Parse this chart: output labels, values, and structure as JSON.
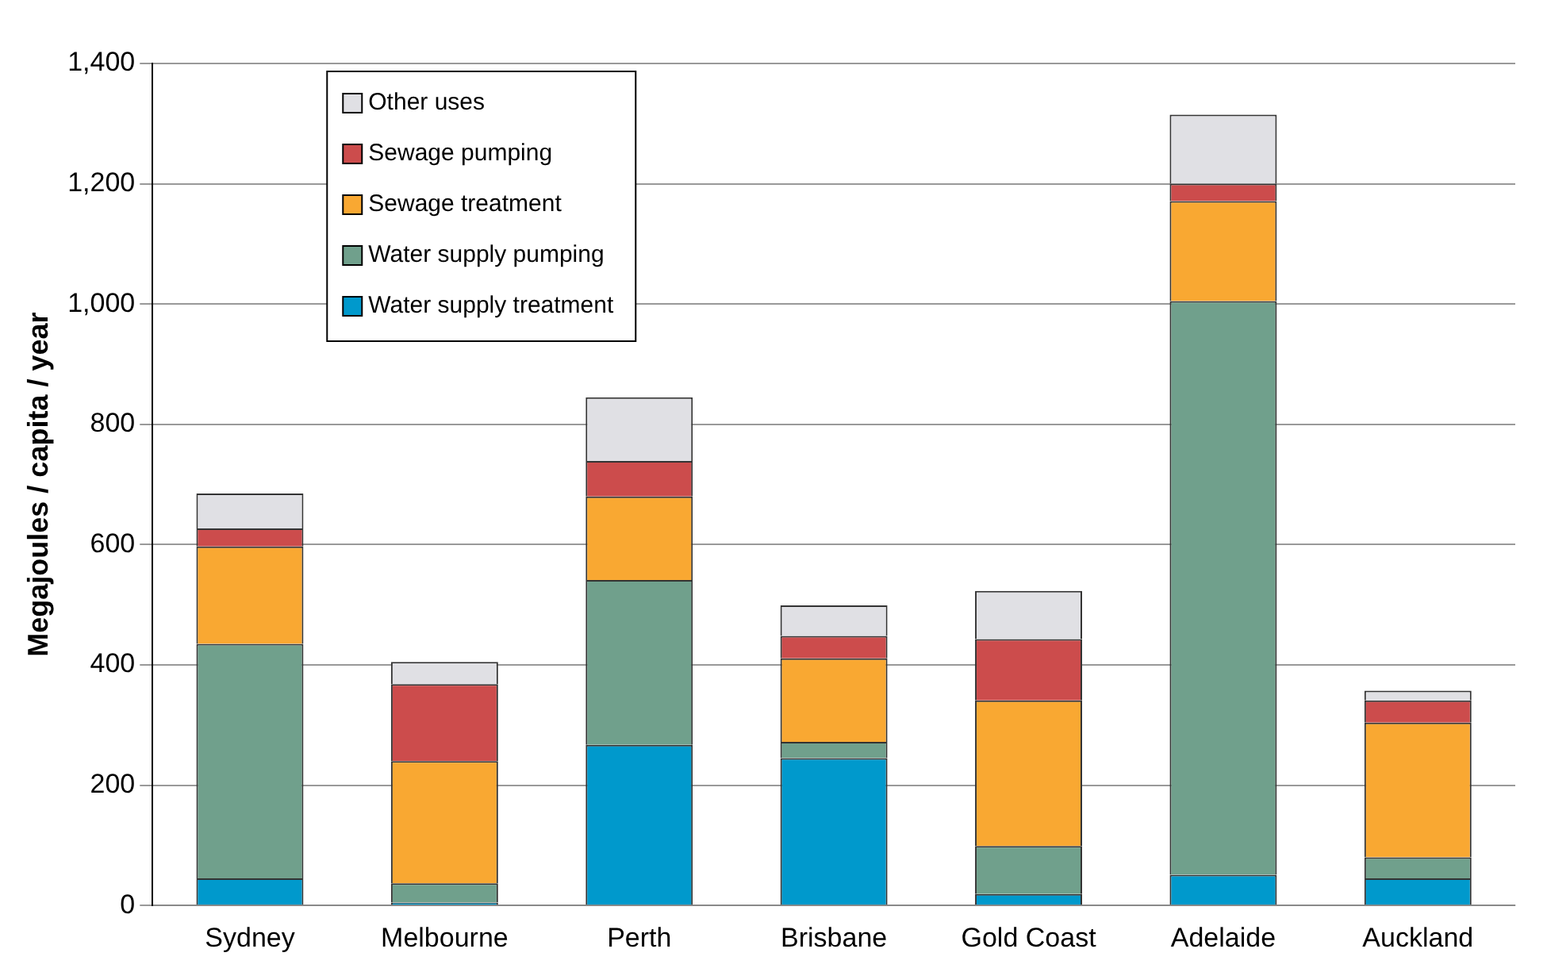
{
  "chart_data": {
    "type": "bar",
    "stacked": true,
    "ylabel": "Megajoules / capita / year",
    "categories": [
      "Sydney",
      "Melbourne",
      "Perth",
      "Brisbane",
      "Gold Coast",
      "Adelaide",
      "Auckland"
    ],
    "series": [
      {
        "name": "Water supply treatment",
        "color": "#0099cc",
        "values": [
          45,
          5,
          267,
          245,
          19,
          51,
          45
        ]
      },
      {
        "name": "Water supply pumping",
        "color": "#70a08c",
        "values": [
          390,
          32,
          274,
          27,
          80,
          954,
          35
        ]
      },
      {
        "name": "Sewage treatment",
        "color": "#f9a832",
        "values": [
          162,
          203,
          139,
          139,
          242,
          166,
          224
        ]
      },
      {
        "name": "Sewage pumping",
        "color": "#cc4c4c",
        "values": [
          30,
          128,
          59,
          37,
          102,
          29,
          37
        ]
      },
      {
        "name": "Other uses",
        "color": "#e0e0e4",
        "values": [
          58,
          37,
          106,
          51,
          80,
          115,
          16
        ]
      }
    ],
    "ylim": [
      0,
      1400
    ],
    "yticks": [
      0,
      200,
      400,
      600,
      800,
      {
        "value": 1000,
        "label": "1,000"
      },
      {
        "value": 1200,
        "label": "1,200"
      },
      {
        "value": 1400,
        "label": "1,400"
      }
    ],
    "grid": "y",
    "legend": "top left"
  }
}
